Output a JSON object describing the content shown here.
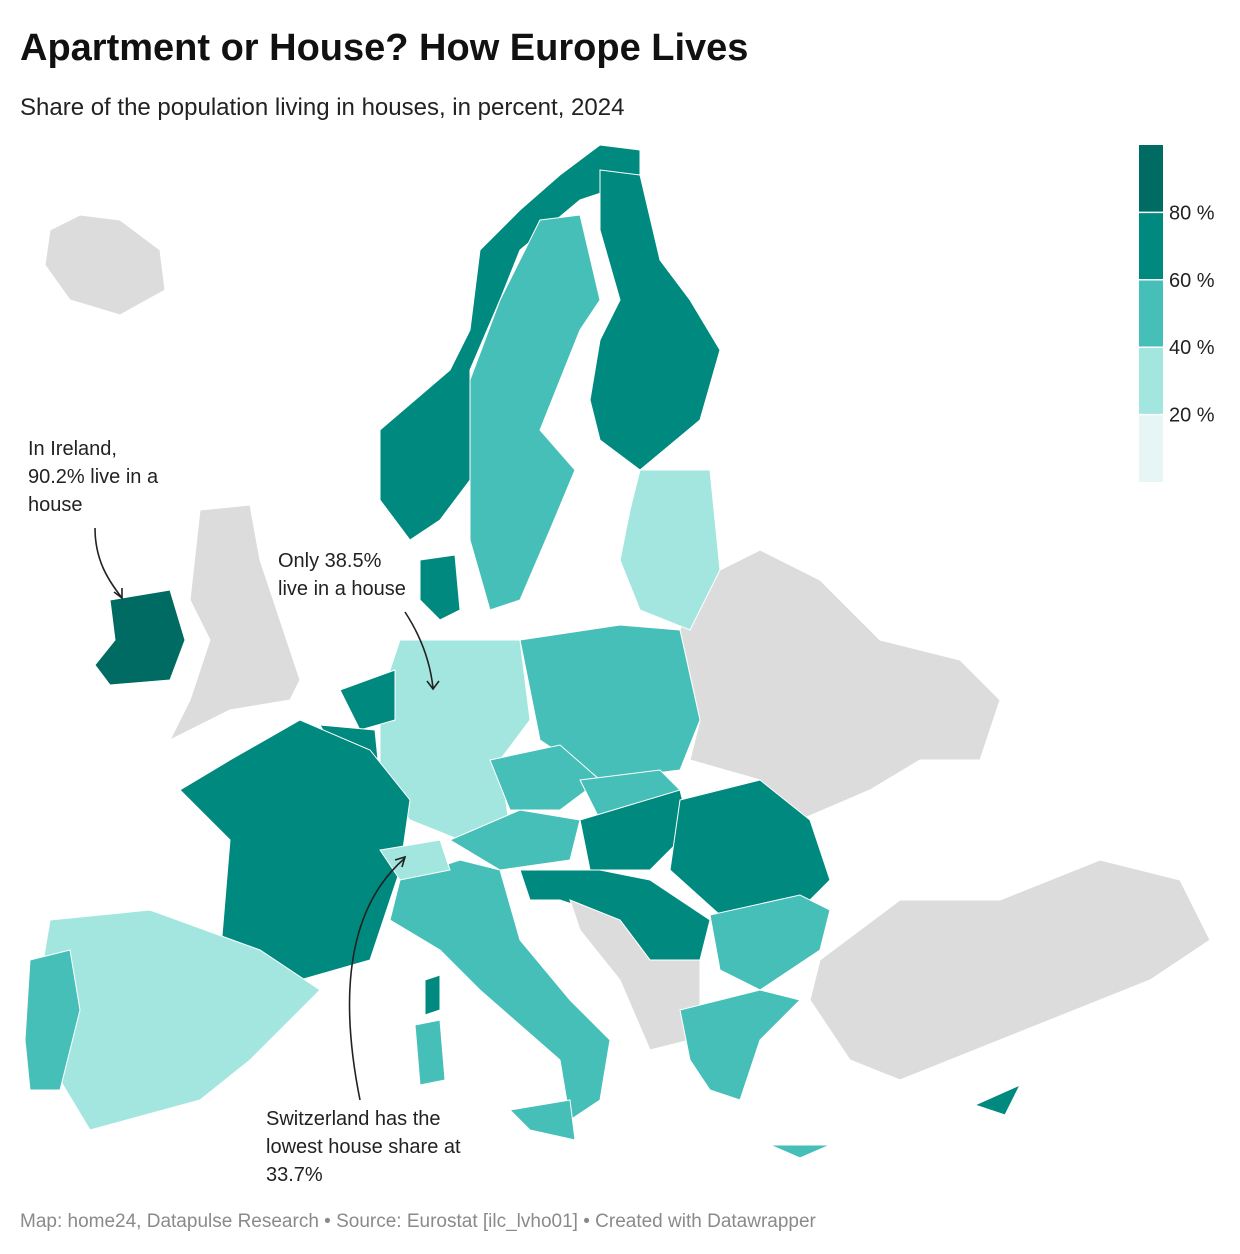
{
  "title": "Apartment or House? How Europe Lives",
  "subtitle": "Share of the population living in houses, in percent, 2024",
  "legend": {
    "range": [
      0,
      100
    ],
    "colors": [
      "#e6f6f4",
      "#a3e6df",
      "#45bfb7",
      "#00897e",
      "#006b63"
    ],
    "ticks": [
      {
        "value": 20,
        "label": "20 %"
      },
      {
        "value": 40,
        "label": "40 %"
      },
      {
        "value": 60,
        "label": "60 %"
      },
      {
        "value": 80,
        "label": "80 %"
      }
    ]
  },
  "annotations": [
    {
      "lines": [
        "In Ireland,",
        "90.2% live in a",
        "house"
      ]
    },
    {
      "lines": [
        "Only 38.5%",
        "live in a house"
      ]
    },
    {
      "lines": [
        "Switzerland has the",
        "lowest house share at",
        "33.7%"
      ]
    }
  ],
  "source": "Map: home24, Datapulse Research • Source: Eurostat [ilc_lvho01] • Created with Datawrapper"
}
